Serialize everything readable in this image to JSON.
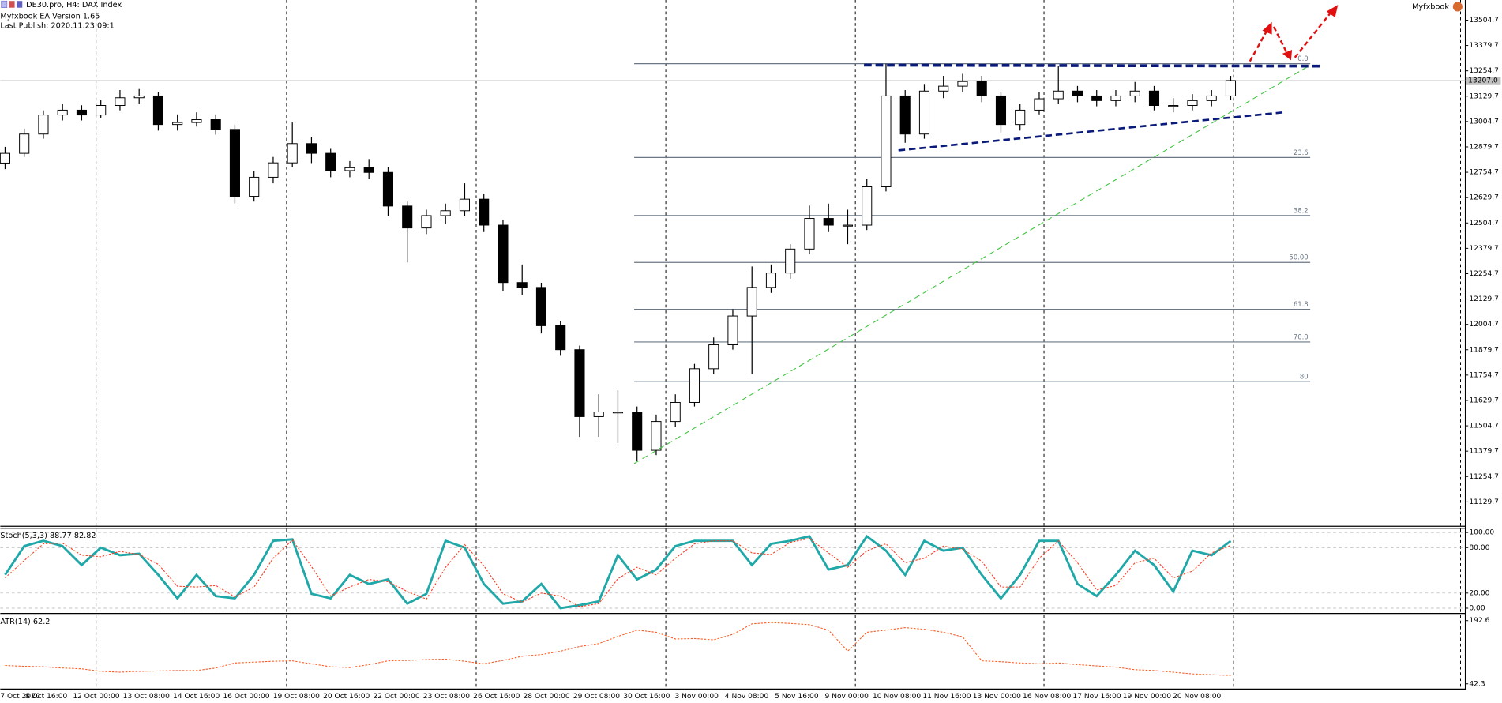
{
  "header": {
    "symbol": "DE30.pro, H4:  DAX Index",
    "version": "Myfxbook EA Version 1.65",
    "publish": "Last Publish: 2020.11.23 09:1",
    "brand": "Myfxbook"
  },
  "chart_data": [
    {
      "type": "candlestick",
      "xtick_labels": [
        "7 Oct 2020",
        "8 Oct 16:00",
        "12 Oct 00:00",
        "13 Oct 08:00",
        "14 Oct 16:00",
        "16 Oct 00:00",
        "19 Oct 08:00",
        "20 Oct 16:00",
        "22 Oct 00:00",
        "23 Oct 08:00",
        "26 Oct 16:00",
        "28 Oct 00:00",
        "29 Oct 08:00",
        "30 Oct 16:00",
        "3 Nov 00:00",
        "4 Nov 08:00",
        "5 Nov 16:00",
        "9 Nov 00:00",
        "10 Nov 08:00",
        "11 Nov 16:00",
        "13 Nov 00:00",
        "16 Nov 08:00",
        "17 Nov 16:00",
        "19 Nov 00:00",
        "20 Nov 08:00"
      ],
      "open": [
        12800,
        12848,
        12943,
        13037,
        13061,
        13037,
        13084,
        13122,
        13131,
        12990,
        13000,
        13014,
        12966,
        12636,
        12730,
        12801,
        12896,
        12848,
        12763,
        12777,
        12754,
        12588,
        12480,
        12541,
        12565,
        12622,
        12494,
        12211,
        12187,
        11998,
        11880,
        11550,
        11573,
        11573,
        11384,
        11526,
        11620,
        11786,
        11904,
        12046,
        12187,
        12258,
        12376,
        12527,
        12494,
        12494,
        12683,
        13131,
        12943,
        13155,
        13179,
        13202,
        13131,
        12990,
        13061,
        13117,
        13155,
        13131,
        13108,
        13131,
        13155,
        13084,
        13084,
        13108,
        13131
      ],
      "high": [
        12880,
        12970,
        13060,
        13090,
        13085,
        13110,
        13160,
        13165,
        13150,
        13040,
        13050,
        13040,
        12990,
        12760,
        12830,
        13000,
        12930,
        12870,
        12810,
        12820,
        12780,
        12610,
        12570,
        12600,
        12700,
        12650,
        12520,
        12300,
        12210,
        12020,
        11900,
        11660,
        11680,
        11600,
        11560,
        11660,
        11810,
        11940,
        12080,
        12290,
        12300,
        12400,
        12590,
        12600,
        12570,
        12720,
        13290,
        13160,
        13190,
        13230,
        13240,
        13230,
        13150,
        13090,
        13150,
        13280,
        13180,
        13160,
        13160,
        13200,
        13180,
        13120,
        13140,
        13160,
        13230
      ],
      "low": [
        12770,
        12830,
        12920,
        13010,
        13010,
        13020,
        13060,
        13090,
        12960,
        12960,
        12980,
        12940,
        12600,
        12610,
        12700,
        12780,
        12800,
        12730,
        12730,
        12720,
        12540,
        12310,
        12450,
        12500,
        12540,
        12460,
        12170,
        12150,
        11960,
        11850,
        11450,
        11450,
        11420,
        11330,
        11360,
        11500,
        11600,
        11760,
        11880,
        11760,
        12160,
        12230,
        12350,
        12460,
        12400,
        12470,
        12660,
        12900,
        12920,
        13120,
        13150,
        13100,
        12950,
        12960,
        13040,
        13090,
        13100,
        13080,
        13080,
        13100,
        13060,
        13050,
        13060,
        13080,
        13110
      ],
      "close": [
        12848,
        12943,
        13037,
        13061,
        13037,
        13084,
        13122,
        13131,
        12990,
        13000,
        13014,
        12966,
        12636,
        12730,
        12801,
        12896,
        12848,
        12763,
        12777,
        12754,
        12588,
        12480,
        12541,
        12565,
        12622,
        12494,
        12211,
        12187,
        11998,
        11880,
        11550,
        11573,
        11573,
        11384,
        11526,
        11620,
        11786,
        11904,
        12046,
        12187,
        12258,
        12376,
        12527,
        12494,
        12494,
        12683,
        13131,
        12943,
        13155,
        13179,
        13202,
        13131,
        12990,
        13061,
        13117,
        13155,
        13131,
        13108,
        13131,
        13155,
        13084,
        13084,
        13108,
        13131,
        13207
      ],
      "up_color": "#ffffff",
      "down_color": "#000000",
      "ylim": [
        11016.4,
        13603.9
      ],
      "yticks": [
        11129.7,
        11254.7,
        11379.7,
        11504.7,
        11629.7,
        11754.7,
        11879.7,
        12004.7,
        12129.7,
        12254.7,
        12379.7,
        12504.7,
        12629.7,
        12754.7,
        12879.7,
        13004.7,
        13129.7,
        13254.7,
        13379.7,
        13504.7
      ],
      "price_marker": {
        "value": 13207,
        "label": "13207.0"
      },
      "fibonacci": [
        {
          "value": 0,
          "label": "0.0"
        },
        {
          "value": 23.6,
          "label": "23.6"
        },
        {
          "value": 38.2,
          "label": "38.2"
        },
        {
          "value": 50,
          "label": "50.00"
        },
        {
          "value": 61.8,
          "label": "61.8"
        },
        {
          "value": 70,
          "label": "70.0"
        },
        {
          "value": 80,
          "label": "80"
        }
      ],
      "fib_color": "#6b7785"
    },
    {
      "type": "line",
      "title": "Stoch(5,3,3) 88.77 82.82",
      "series": [
        {
          "name": "Main",
          "color": "#20a8a8",
          "values": [
            44,
            82,
            89,
            82,
            57,
            80,
            70,
            72,
            44,
            13,
            44,
            16,
            13,
            44,
            89,
            91,
            19,
            13,
            44,
            32,
            38,
            6,
            19,
            89,
            80,
            32,
            6,
            9,
            32,
            0,
            4,
            9,
            70,
            38,
            51,
            82,
            89,
            89,
            89,
            57,
            85,
            89,
            95,
            51,
            57,
            95,
            76,
            44,
            89,
            76,
            80,
            44,
            13,
            44,
            89,
            89,
            32,
            16,
            44,
            76,
            57,
            22,
            76,
            70,
            88.77
          ]
        },
        {
          "name": "Signal",
          "color": "#ff3b1f",
          "values": [
            40,
            63,
            85,
            86,
            70,
            68,
            75,
            71,
            58,
            29,
            28,
            30,
            15,
            28,
            66,
            90,
            55,
            16,
            28,
            38,
            35,
            22,
            12,
            54,
            84,
            56,
            19,
            8,
            20,
            16,
            2,
            6,
            39,
            54,
            44,
            66,
            85,
            89,
            89,
            73,
            71,
            87,
            92,
            73,
            54,
            76,
            85,
            60,
            66,
            82,
            78,
            62,
            28,
            28,
            66,
            89,
            60,
            24,
            30,
            60,
            66,
            40,
            49,
            73,
            82.82
          ]
        }
      ],
      "ylim": [
        -6.3,
        105
      ],
      "yticks": [
        {
          "value": 100,
          "label": "100.00"
        },
        {
          "value": 80,
          "label": "80.00"
        },
        {
          "value": 20,
          "label": "20.00"
        },
        {
          "value": 0,
          "label": "0.00"
        }
      ]
    },
    {
      "type": "line",
      "title": "ATR(14) 62.2",
      "series": [
        {
          "name": "ATR",
          "color": "#ff5a1f",
          "values": [
            86,
            84,
            83,
            80,
            78,
            72,
            70,
            72,
            73,
            74,
            74,
            80,
            92,
            94,
            96,
            97,
            90,
            83,
            81,
            88,
            97,
            98,
            100,
            101,
            96,
            90,
            98,
            108,
            112,
            120,
            131,
            138,
            155,
            170,
            165,
            149,
            150,
            147,
            160,
            185,
            188,
            186,
            183,
            170,
            120,
            165,
            170,
            176,
            172,
            165,
            154,
            97,
            95,
            92,
            90,
            92,
            88,
            85,
            82,
            76,
            74,
            70,
            66,
            64,
            62.2
          ]
        }
      ],
      "ylim": [
        33.2,
        206.3
      ],
      "yticks": [
        192.6,
        42.3
      ]
    }
  ]
}
